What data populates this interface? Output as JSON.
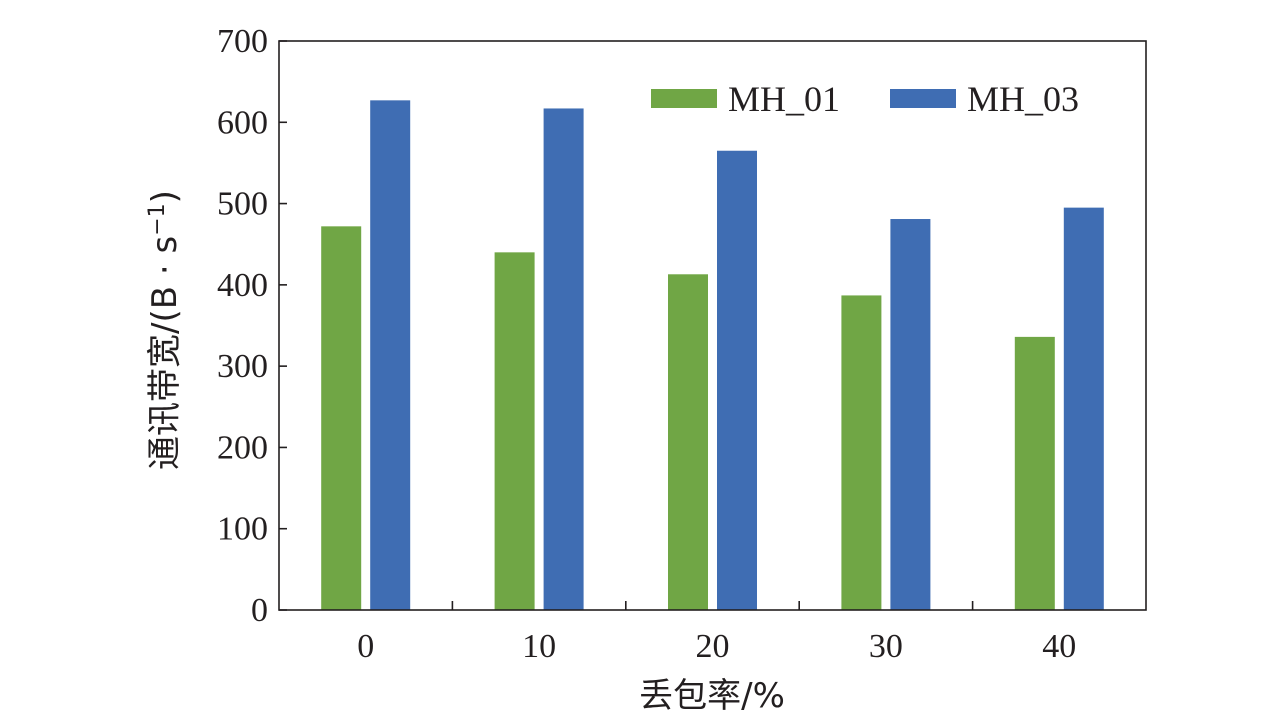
{
  "chart_data": {
    "type": "bar",
    "categories": [
      "0",
      "10",
      "20",
      "30",
      "40"
    ],
    "series": [
      {
        "name": "MH_01",
        "color": "#70a645",
        "values": [
          472,
          440,
          413,
          387,
          336
        ]
      },
      {
        "name": "MH_03",
        "color": "#3f6db3",
        "values": [
          627,
          617,
          565,
          481,
          495
        ]
      }
    ],
    "xlabel": "丢包率/%",
    "ylabel": {
      "main": "通讯带宽/(B · s",
      "sup": "−1",
      "close": ")"
    },
    "ylim": [
      0,
      700
    ],
    "yticks": [
      "0",
      "100",
      "200",
      "300",
      "400",
      "500",
      "600",
      "700"
    ],
    "legend_position": "top-right",
    "grid": false
  }
}
